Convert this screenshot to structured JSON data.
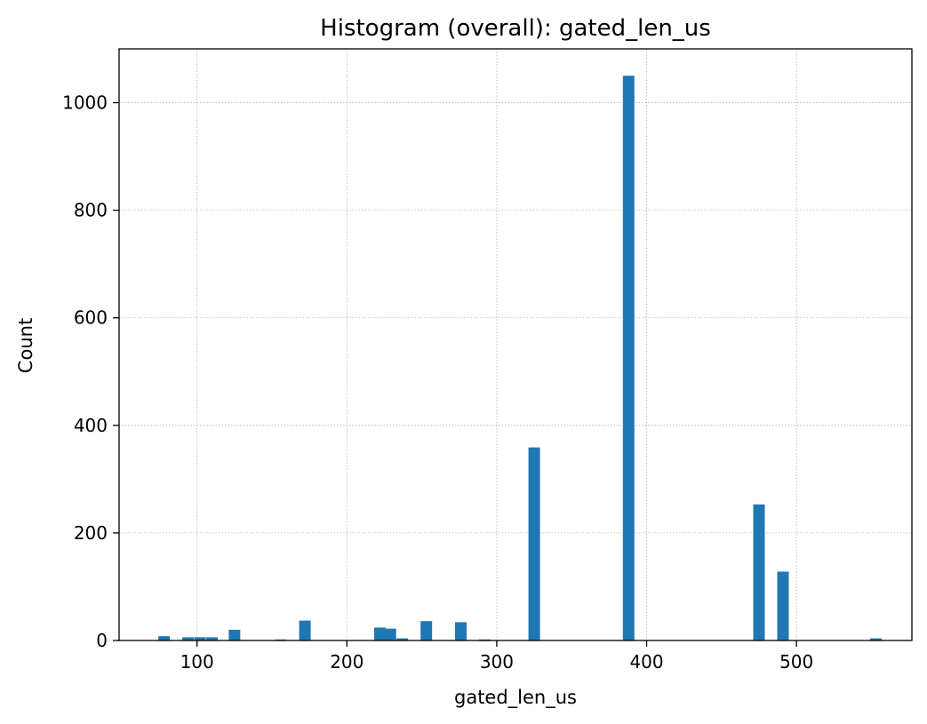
{
  "chart_data": {
    "type": "bar",
    "title": "Histogram (overall): gated_len_us",
    "xlabel": "gated_len_us",
    "ylabel": "Count",
    "xlim": [
      48,
      577
    ],
    "ylim": [
      0,
      1100
    ],
    "xticks": [
      100,
      200,
      300,
      400,
      500
    ],
    "yticks": [
      0,
      200,
      400,
      600,
      800,
      1000
    ],
    "grid": true,
    "bar_color": "#1f77b4",
    "bin_width": 7.7,
    "bins": [
      {
        "x": 78,
        "count": 8
      },
      {
        "x": 94,
        "count": 6
      },
      {
        "x": 102,
        "count": 6
      },
      {
        "x": 110,
        "count": 6
      },
      {
        "x": 125,
        "count": 20
      },
      {
        "x": 156,
        "count": 2
      },
      {
        "x": 172,
        "count": 37
      },
      {
        "x": 222,
        "count": 24
      },
      {
        "x": 229,
        "count": 22
      },
      {
        "x": 237,
        "count": 4
      },
      {
        "x": 253,
        "count": 36
      },
      {
        "x": 276,
        "count": 34
      },
      {
        "x": 292,
        "count": 2
      },
      {
        "x": 325,
        "count": 359
      },
      {
        "x": 388,
        "count": 1050
      },
      {
        "x": 475,
        "count": 253
      },
      {
        "x": 491,
        "count": 128
      },
      {
        "x": 553,
        "count": 4
      }
    ]
  }
}
